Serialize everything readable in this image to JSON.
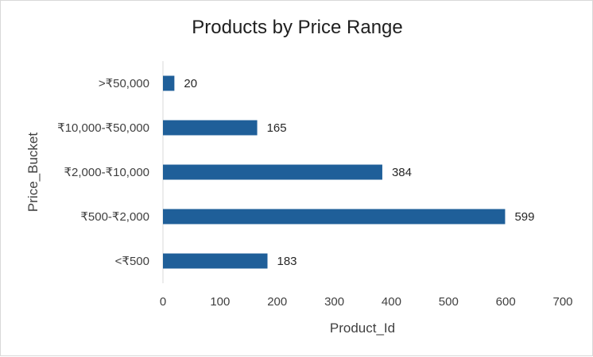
{
  "chart_data": {
    "type": "bar",
    "orientation": "horizontal",
    "title": "Products by Price Range",
    "xlabel": "Product_Id",
    "ylabel": "Price_Bucket",
    "categories": [
      ">₹50,000",
      "₹10,000-₹50,000",
      "₹2,000-₹10,000",
      "₹500-₹2,000",
      "<₹500"
    ],
    "values": [
      20,
      165,
      384,
      599,
      183
    ],
    "data_labels": [
      "20",
      "165",
      "384",
      "599",
      "183"
    ],
    "x_ticks": [
      "0",
      "100",
      "200",
      "300",
      "400",
      "500",
      "600",
      "700"
    ],
    "xlim": [
      0,
      700
    ],
    "grid": false,
    "legend": "none",
    "bar_color": "#1f5f99"
  }
}
